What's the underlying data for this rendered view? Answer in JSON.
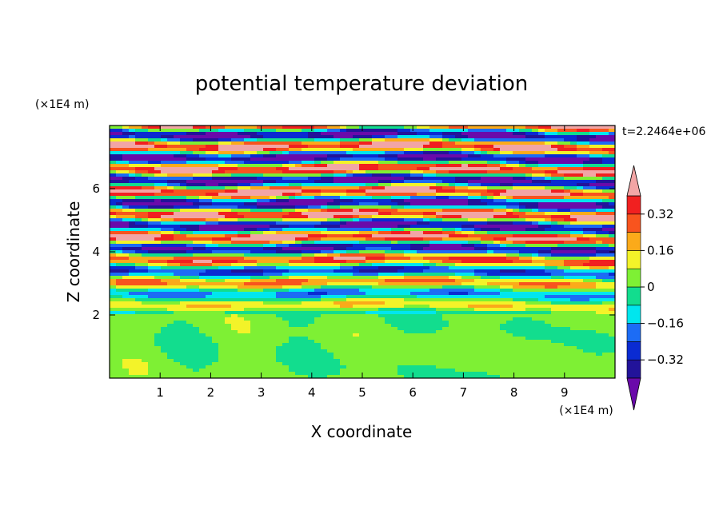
{
  "chart_data": {
    "type": "contour",
    "title": "potential temperature deviation",
    "xlabel": "X coordinate",
    "ylabel": "Z coordinate",
    "x_unit": "(×1E4 m)",
    "y_unit": "(×1E4 m)",
    "time_label": "t=2.2464e+06",
    "xlim": [
      0,
      10
    ],
    "ylim": [
      0,
      8
    ],
    "x_ticks": [
      "1",
      "2",
      "3",
      "4",
      "5",
      "6",
      "7",
      "8",
      "9"
    ],
    "y_ticks": [
      "2",
      "4",
      "6"
    ],
    "colorbar": {
      "levels": [
        -0.4,
        -0.32,
        -0.24,
        -0.16,
        -0.08,
        0,
        0.08,
        0.16,
        0.24,
        0.32,
        0.4
      ],
      "tick_labels": [
        "0.32",
        "0.16",
        "0",
        "−0.16",
        "−0.32"
      ],
      "colors": [
        "#6a0aaa",
        "#22139a",
        "#0a2bd2",
        "#1c6cf5",
        "#00e6ee",
        "#12dd8e",
        "#7ef034",
        "#f3f329",
        "#fbaa1a",
        "#f8541e",
        "#f12020",
        "#f2a5a5"
      ]
    }
  }
}
